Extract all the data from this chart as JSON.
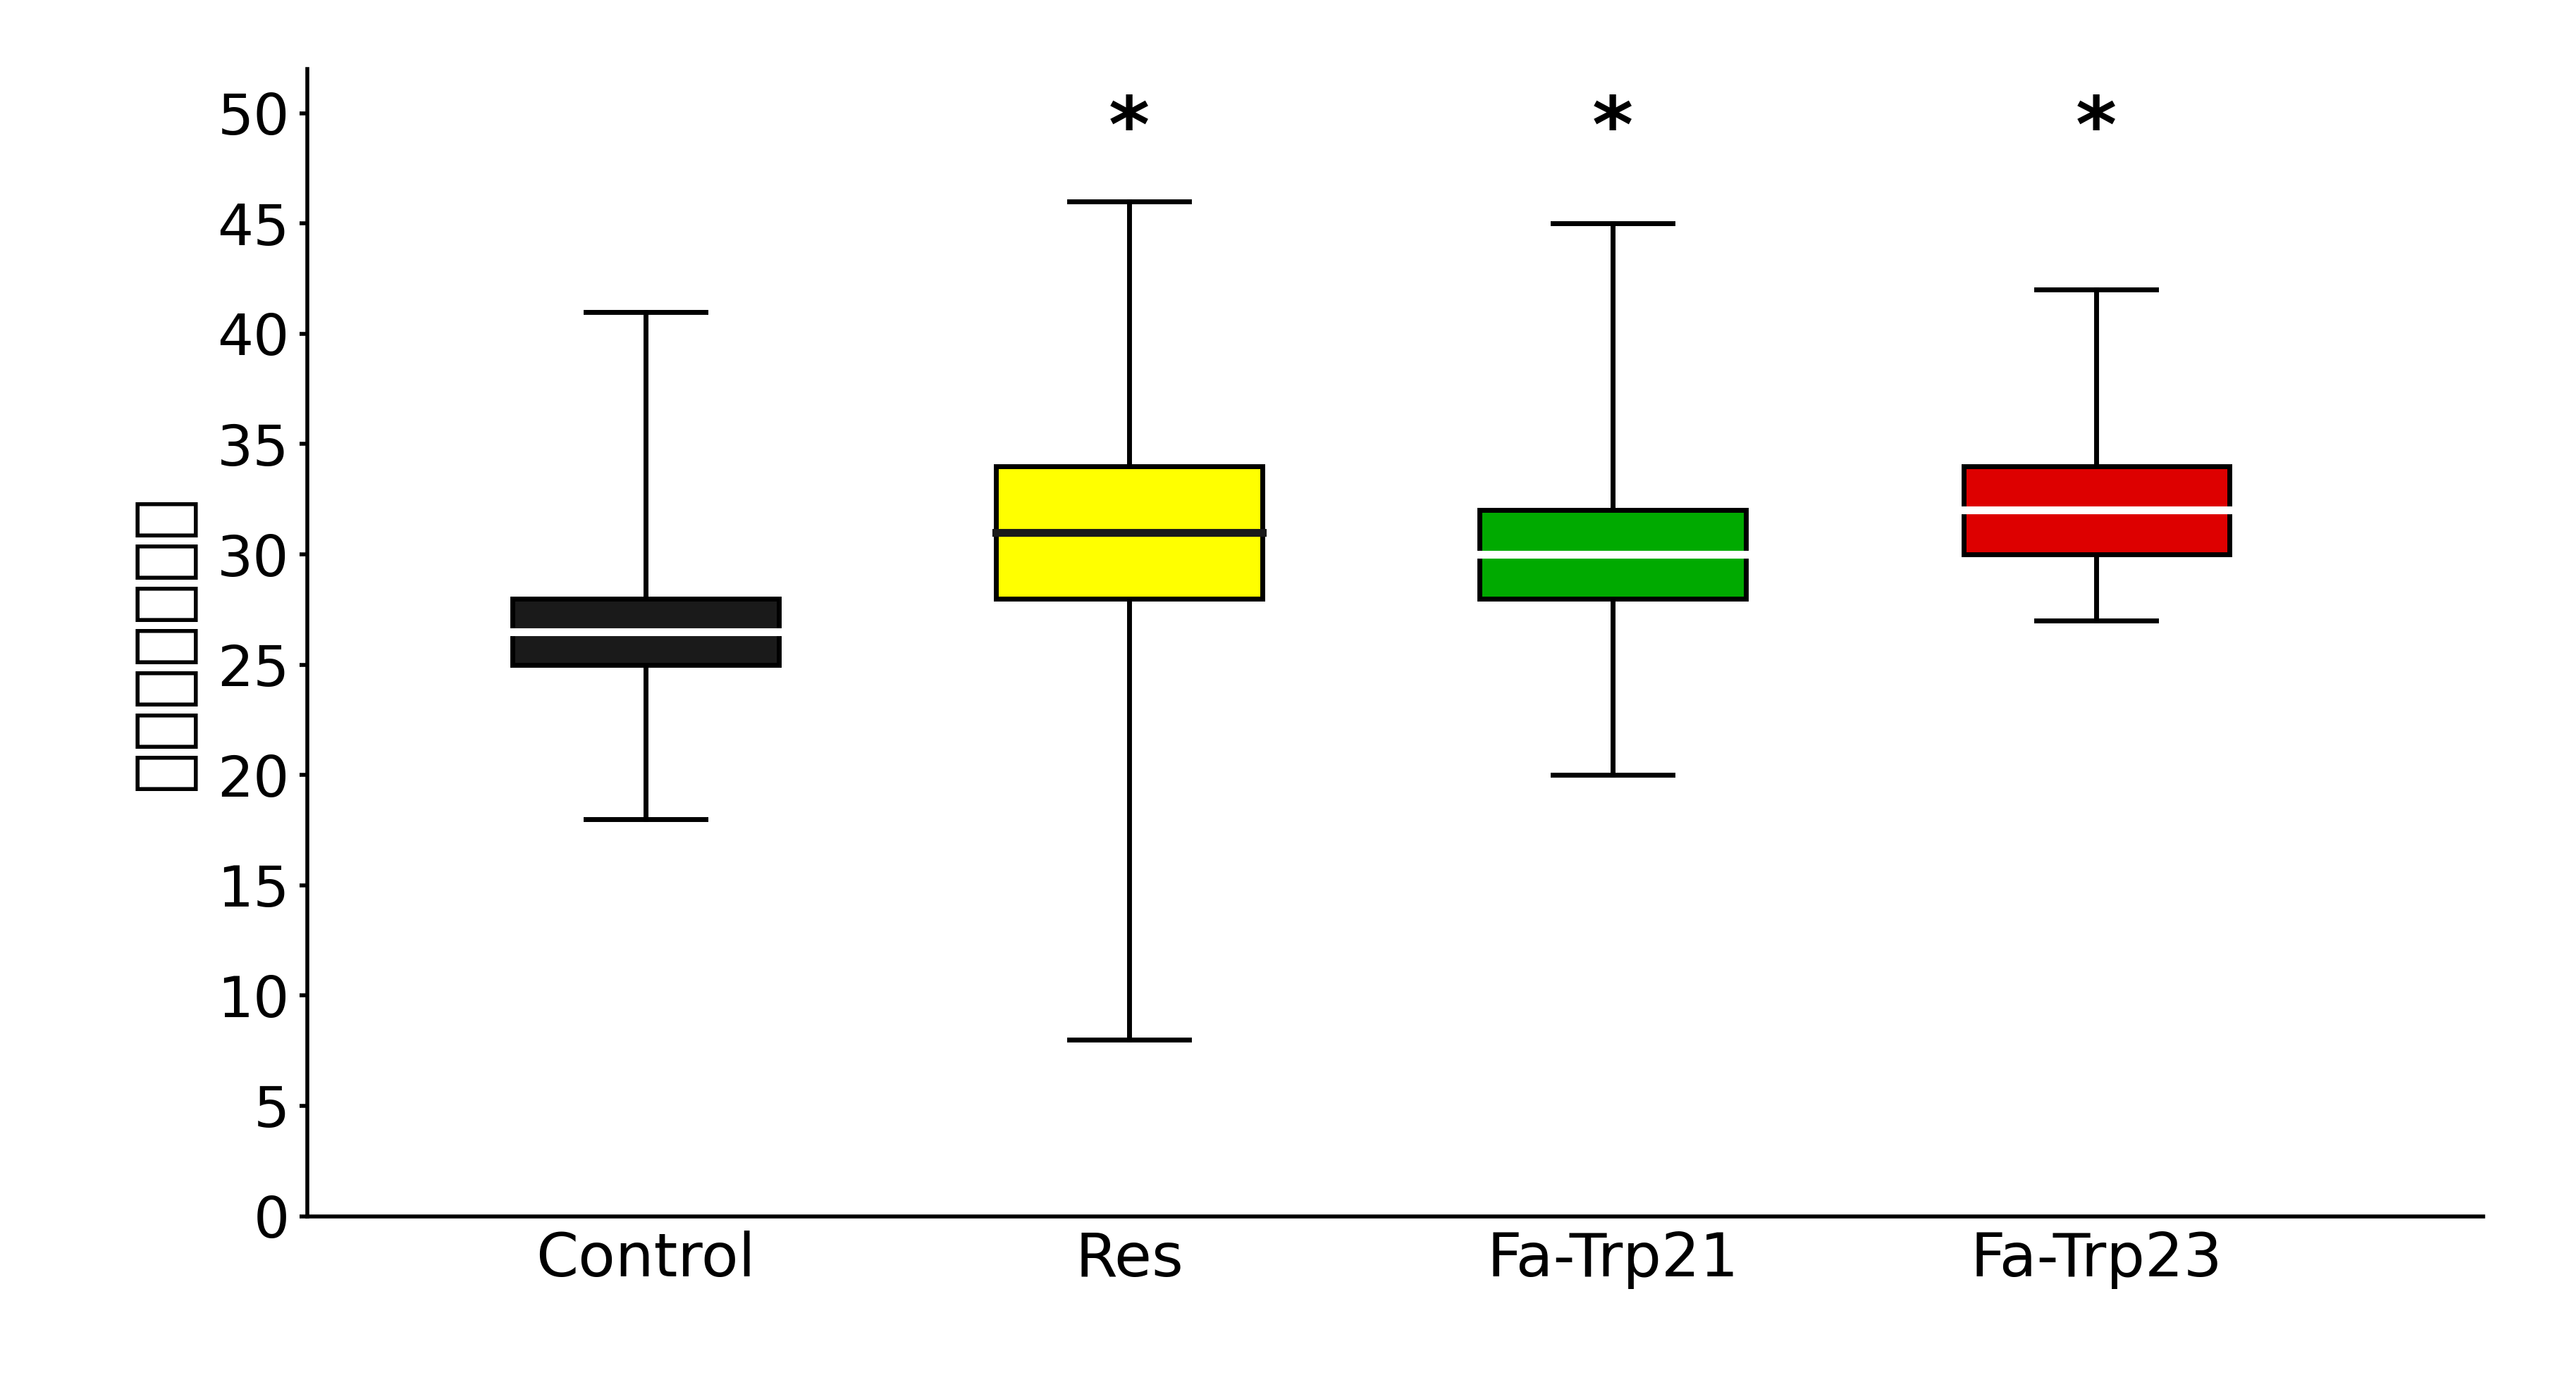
{
  "categories": [
    "Control",
    "Res",
    "Fa-Trp21",
    "Fa-Trp23"
  ],
  "box_data": [
    {
      "whislo": 18,
      "q1": 25,
      "med": 26.5,
      "q3": 28,
      "whishi": 41
    },
    {
      "whislo": 8,
      "q1": 28,
      "med": 31,
      "q3": 34,
      "whishi": 46
    },
    {
      "whislo": 20,
      "q1": 28,
      "med": 30,
      "q3": 32,
      "whishi": 45
    },
    {
      "whislo": 27,
      "q1": 30,
      "med": 32,
      "q3": 34,
      "whishi": 42
    }
  ],
  "box_colors": [
    "#1a1a1a",
    "#ffff00",
    "#00aa00",
    "#dd0000"
  ],
  "median_colors": [
    "#ffffff",
    "#1a1a1a",
    "#ffffff",
    "#ffffff"
  ],
  "star_positions": [
    null,
    47.5,
    47.5,
    47.5
  ],
  "ylabel": "平均寿命（日）",
  "ylim": [
    0,
    52
  ],
  "yticks": [
    0,
    5,
    10,
    15,
    20,
    25,
    30,
    35,
    40,
    45,
    50
  ],
  "background_color": "#ffffff",
  "box_width": 0.55,
  "linewidth": 5.0,
  "median_linewidth": 8.0,
  "ylabel_fontsize": 72,
  "tick_fontsize": 58,
  "xlabel_fontsize": 62,
  "star_fontsize": 80,
  "spine_linewidth": 4.0
}
